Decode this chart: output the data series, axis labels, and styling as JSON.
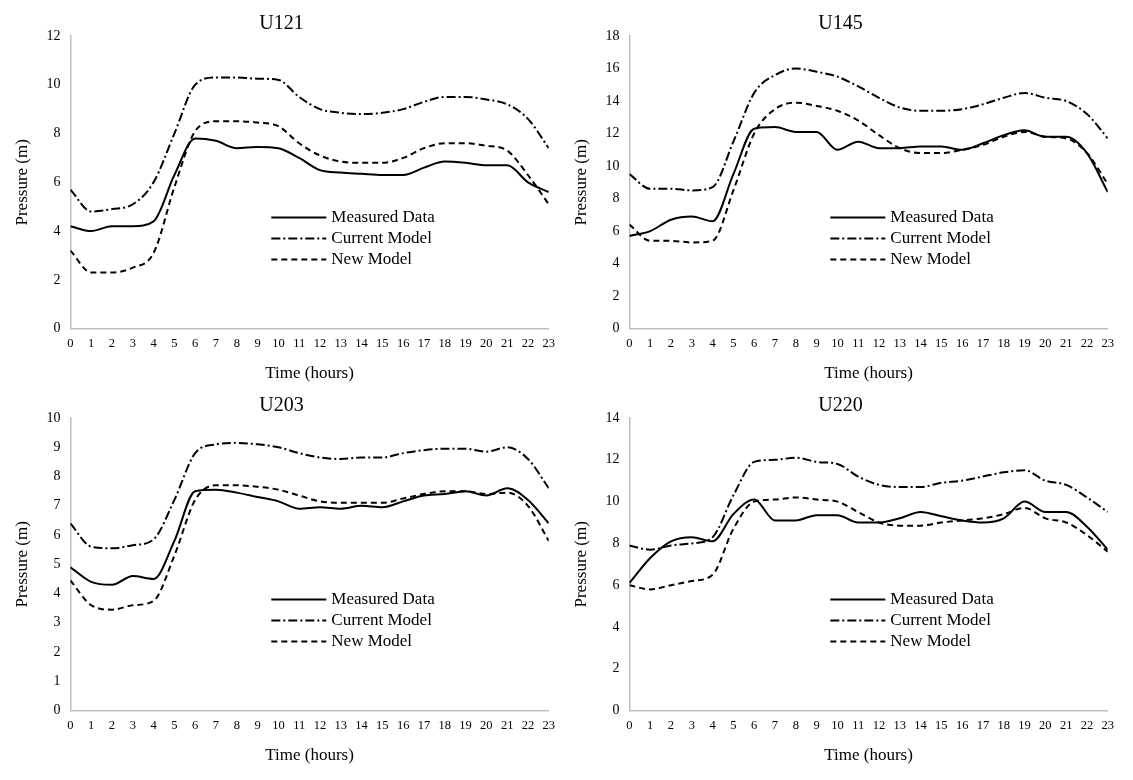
{
  "chart_data": [
    {
      "type": "line",
      "title": "U121",
      "xlabel": "Time (hours)",
      "ylabel": "Pressure (m)",
      "x": [
        0,
        1,
        2,
        3,
        4,
        5,
        6,
        7,
        8,
        9,
        10,
        11,
        12,
        13,
        14,
        15,
        16,
        17,
        18,
        19,
        20,
        21,
        22,
        23
      ],
      "xlim": [
        0,
        23
      ],
      "xticks": [
        0,
        1,
        2,
        3,
        4,
        5,
        6,
        7,
        8,
        9,
        10,
        11,
        12,
        13,
        14,
        15,
        16,
        17,
        18,
        19,
        20,
        21,
        22,
        23
      ],
      "ylim": [
        0,
        12
      ],
      "yticks": [
        0,
        2,
        4,
        6,
        8,
        10,
        12
      ],
      "grid": false,
      "legend": "bottom",
      "marker": "none",
      "series": [
        {
          "name": "Measured Data",
          "color": "#000000",
          "line_style": "solid",
          "values": [
            4.2,
            4.0,
            4.2,
            4.2,
            4.4,
            6.3,
            7.8,
            7.7,
            7.4,
            7.45,
            7.4,
            7.0,
            6.5,
            6.4,
            6.35,
            6.3,
            6.3,
            6.6,
            6.85,
            6.8,
            6.7,
            6.7,
            6.0,
            5.6
          ]
        },
        {
          "name": "Current Model",
          "color": "#000000",
          "line_style": "dashdot",
          "values": [
            5.7,
            4.8,
            4.9,
            5.1,
            6.0,
            8.0,
            10.0,
            10.3,
            10.3,
            10.25,
            10.2,
            9.5,
            9.0,
            8.85,
            8.8,
            8.85,
            9.0,
            9.3,
            9.5,
            9.5,
            9.4,
            9.2,
            8.6,
            7.4
          ]
        },
        {
          "name": "New Model",
          "color": "#000000",
          "line_style": "dashed",
          "values": [
            3.2,
            2.3,
            2.3,
            2.5,
            3.1,
            5.8,
            8.1,
            8.5,
            8.5,
            8.45,
            8.3,
            7.6,
            7.1,
            6.85,
            6.8,
            6.8,
            7.0,
            7.4,
            7.6,
            7.6,
            7.5,
            7.3,
            6.3,
            5.1
          ]
        }
      ]
    },
    {
      "type": "line",
      "title": "U145",
      "xlabel": "Time (hours)",
      "ylabel": "Pressure (m)",
      "x": [
        0,
        1,
        2,
        3,
        4,
        5,
        6,
        7,
        8,
        9,
        10,
        11,
        12,
        13,
        14,
        15,
        16,
        17,
        18,
        19,
        20,
        21,
        22,
        23
      ],
      "xlim": [
        0,
        23
      ],
      "xticks": [
        0,
        1,
        2,
        3,
        4,
        5,
        6,
        7,
        8,
        9,
        10,
        11,
        12,
        13,
        14,
        15,
        16,
        17,
        18,
        19,
        20,
        21,
        22,
        23
      ],
      "ylim": [
        0,
        18
      ],
      "yticks": [
        0,
        2,
        4,
        6,
        8,
        10,
        12,
        14,
        16,
        18
      ],
      "grid": false,
      "legend": "bottom",
      "marker": "none",
      "series": [
        {
          "name": "Measured Data",
          "color": "#000000",
          "line_style": "solid",
          "values": [
            5.7,
            6.0,
            6.7,
            6.9,
            6.6,
            9.5,
            12.3,
            12.4,
            12.1,
            12.1,
            11.0,
            11.5,
            11.1,
            11.1,
            11.2,
            11.2,
            11.0,
            11.4,
            11.9,
            12.2,
            11.8,
            11.8,
            10.8,
            8.4
          ]
        },
        {
          "name": "Current Model",
          "color": "#000000",
          "line_style": "dashdot",
          "values": [
            9.5,
            8.6,
            8.6,
            8.5,
            8.7,
            11.5,
            14.5,
            15.6,
            16.0,
            15.8,
            15.5,
            14.9,
            14.2,
            13.6,
            13.4,
            13.4,
            13.5,
            13.8,
            14.2,
            14.5,
            14.2,
            14.0,
            13.2,
            11.7
          ]
        },
        {
          "name": "New Model",
          "color": "#000000",
          "line_style": "dashed",
          "values": [
            6.4,
            5.4,
            5.4,
            5.3,
            5.4,
            8.5,
            12.0,
            13.5,
            13.9,
            13.7,
            13.4,
            12.8,
            11.9,
            11.1,
            10.8,
            10.8,
            11.0,
            11.3,
            11.8,
            12.1,
            11.8,
            11.7,
            10.8,
            8.9
          ]
        }
      ]
    },
    {
      "type": "line",
      "title": "U203",
      "xlabel": "Time (hours)",
      "ylabel": "Pressure (m)",
      "x": [
        0,
        1,
        2,
        3,
        4,
        5,
        6,
        7,
        8,
        9,
        10,
        11,
        12,
        13,
        14,
        15,
        16,
        17,
        18,
        19,
        20,
        21,
        22,
        23
      ],
      "xlim": [
        0,
        23
      ],
      "xticks": [
        0,
        1,
        2,
        3,
        4,
        5,
        6,
        7,
        8,
        9,
        10,
        11,
        12,
        13,
        14,
        15,
        16,
        17,
        18,
        19,
        20,
        21,
        22,
        23
      ],
      "ylim": [
        0,
        10
      ],
      "yticks": [
        0,
        1,
        2,
        3,
        4,
        5,
        6,
        7,
        8,
        9,
        10
      ],
      "grid": false,
      "legend": "bottom",
      "marker": "none",
      "series": [
        {
          "name": "Measured Data",
          "color": "#000000",
          "line_style": "solid",
          "values": [
            4.9,
            4.4,
            4.3,
            4.6,
            4.5,
            5.8,
            7.5,
            7.55,
            7.45,
            7.3,
            7.15,
            6.9,
            6.95,
            6.9,
            7.0,
            6.95,
            7.15,
            7.35,
            7.4,
            7.5,
            7.35,
            7.6,
            7.2,
            6.4
          ]
        },
        {
          "name": "Current Model",
          "color": "#000000",
          "line_style": "dashdot",
          "values": [
            6.4,
            5.6,
            5.55,
            5.65,
            5.85,
            7.2,
            8.8,
            9.1,
            9.15,
            9.1,
            9.0,
            8.8,
            8.65,
            8.6,
            8.65,
            8.65,
            8.8,
            8.9,
            8.95,
            8.95,
            8.85,
            9.0,
            8.6,
            7.6
          ]
        },
        {
          "name": "New Model",
          "color": "#000000",
          "line_style": "dashed",
          "values": [
            4.45,
            3.6,
            3.45,
            3.6,
            3.75,
            5.3,
            7.2,
            7.7,
            7.7,
            7.65,
            7.55,
            7.35,
            7.15,
            7.1,
            7.1,
            7.1,
            7.25,
            7.4,
            7.5,
            7.5,
            7.4,
            7.45,
            7.0,
            5.8
          ]
        }
      ]
    },
    {
      "type": "line",
      "title": "U220",
      "xlabel": "Time (hours)",
      "ylabel": "Pressure (m)",
      "x": [
        0,
        1,
        2,
        3,
        4,
        5,
        6,
        7,
        8,
        9,
        10,
        11,
        12,
        13,
        14,
        15,
        16,
        17,
        18,
        19,
        20,
        21,
        22,
        23
      ],
      "xlim": [
        0,
        23
      ],
      "xticks": [
        0,
        1,
        2,
        3,
        4,
        5,
        6,
        7,
        8,
        9,
        10,
        11,
        12,
        13,
        14,
        15,
        16,
        17,
        18,
        19,
        20,
        21,
        22,
        23
      ],
      "ylim": [
        0,
        14
      ],
      "yticks": [
        0,
        2,
        4,
        6,
        8,
        10,
        12,
        14
      ],
      "grid": false,
      "legend": "bottom",
      "marker": "none",
      "series": [
        {
          "name": "Measured Data",
          "color": "#000000",
          "line_style": "solid",
          "values": [
            6.1,
            7.3,
            8.1,
            8.3,
            8.1,
            9.4,
            10.1,
            9.1,
            9.1,
            9.35,
            9.35,
            9.0,
            9.0,
            9.2,
            9.5,
            9.3,
            9.1,
            9.0,
            9.2,
            10.0,
            9.5,
            9.5,
            8.8,
            7.7
          ]
        },
        {
          "name": "Current Model",
          "color": "#000000",
          "line_style": "dashdot",
          "values": [
            7.9,
            7.7,
            7.9,
            8.0,
            8.3,
            10.3,
            11.9,
            12.0,
            12.1,
            11.9,
            11.8,
            11.2,
            10.8,
            10.7,
            10.7,
            10.9,
            11.0,
            11.2,
            11.4,
            11.5,
            11.0,
            10.8,
            10.2,
            9.5
          ]
        },
        {
          "name": "New Model",
          "color": "#000000",
          "line_style": "dashed",
          "values": [
            6.0,
            5.8,
            6.0,
            6.2,
            6.5,
            8.7,
            10.0,
            10.1,
            10.2,
            10.1,
            10.0,
            9.5,
            9.0,
            8.85,
            8.85,
            9.0,
            9.1,
            9.2,
            9.4,
            9.7,
            9.2,
            9.0,
            8.4,
            7.6
          ]
        }
      ]
    }
  ]
}
